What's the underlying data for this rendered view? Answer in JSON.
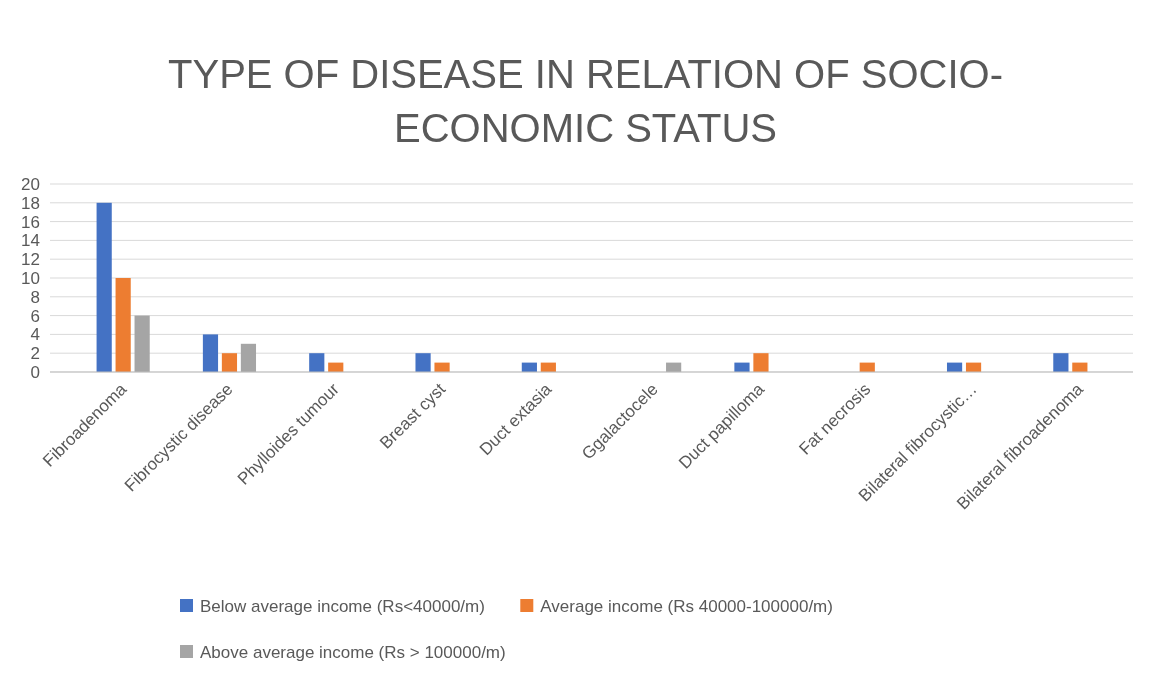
{
  "chart_data": {
    "type": "bar",
    "title": "TYPE OF DISEASE IN RELATION OF SOCIO-ECONOMIC STATUS",
    "categories": [
      "Fibroadenoma",
      "Fibrocystic disease",
      "Phylloides tumour",
      "Breast cyst",
      "Duct extasia",
      "Ggalactocele",
      "Duct papilloma",
      "Fat necrosis",
      "Bilateral fibrocystic…",
      "Bilateral fibroadenoma"
    ],
    "series": [
      {
        "name": "Below average income (Rs<40000/m)",
        "color": "#4472c4",
        "values": [
          18,
          4,
          2,
          2,
          1,
          0,
          1,
          0,
          1,
          2
        ]
      },
      {
        "name": "Average income (Rs 40000-100000/m)",
        "color": "#ed7d31",
        "values": [
          10,
          2,
          1,
          1,
          1,
          0,
          2,
          1,
          1,
          1
        ]
      },
      {
        "name": "Above average income (Rs > 100000/m)",
        "color": "#a5a5a5",
        "values": [
          6,
          3,
          0,
          0,
          0,
          1,
          0,
          0,
          0,
          0
        ]
      }
    ],
    "ylim": [
      0,
      20
    ],
    "yticks": [
      0,
      2,
      4,
      6,
      8,
      10,
      12,
      14,
      16,
      18,
      20
    ],
    "grid": "y",
    "legend": "bottom"
  }
}
